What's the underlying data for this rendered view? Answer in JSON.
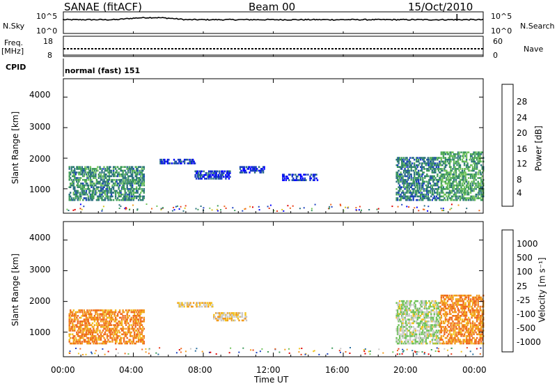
{
  "header": {
    "title": "SANAE (fitACF)",
    "beam": "Beam 00",
    "date": "15/Oct/2010"
  },
  "top_panels": {
    "nsky_label": "N.Sky",
    "nsky_ticks": [
      "10^5",
      "10^0"
    ],
    "nsearch_label": "N.Search",
    "nsearch_ticks": [
      "10^5",
      "10^0"
    ],
    "freq_label_1": "Freq.",
    "freq_label_2": "[MHz]",
    "freq_ticks": [
      "18",
      "8"
    ],
    "nave_label": "Nave",
    "nave_ticks": [
      "60",
      "0"
    ],
    "cpid_label": "CPID",
    "cpid_text": "normal (fast) 151"
  },
  "colors": {
    "power_scale": [
      "#0000ff",
      "#1a3fbf",
      "#2a6f7f",
      "#3c9a5a",
      "#6fc25a",
      "#d9c21a",
      "#f29b1c",
      "#ef6a1e",
      "#e83a1a",
      "#e00000"
    ],
    "velocity_scale": [
      "#1a3fbf",
      "#2a6f9f",
      "#3c9a5a",
      "#6fc25a",
      "#c8c8c8",
      "#f2c21c",
      "#f29b1c",
      "#ef6a1e",
      "#e83a1a",
      "#e00000"
    ]
  },
  "chart_data": [
    {
      "type": "heatmap",
      "panel": "power",
      "ylabel": "Slant Range [km]",
      "ylim": [
        200,
        4600
      ],
      "yticks": [
        "1000",
        "2000",
        "3000",
        "4000"
      ],
      "xlim": [
        0,
        24
      ],
      "colorbar_label": "Power [dB]",
      "colorbar_ticks": [
        "4",
        "8",
        "12",
        "16",
        "20",
        "24",
        "28"
      ],
      "colorbar_range": [
        0,
        32
      ],
      "regions": [
        {
          "t0": 0.3,
          "t1": 4.6,
          "r0": 600,
          "r1": 1700,
          "value": 10
        },
        {
          "t0": 5.5,
          "t1": 7.5,
          "r0": 1800,
          "r1": 1950,
          "value": 4
        },
        {
          "t0": 7.5,
          "t1": 9.5,
          "r0": 1300,
          "r1": 1550,
          "value": 5
        },
        {
          "t0": 10.0,
          "t1": 11.5,
          "r0": 1500,
          "r1": 1700,
          "value": 4
        },
        {
          "t0": 12.5,
          "t1": 14.5,
          "r0": 1250,
          "r1": 1450,
          "value": 4
        },
        {
          "t0": 19.0,
          "t1": 21.5,
          "r0": 600,
          "r1": 2000,
          "value": 9
        },
        {
          "t0": 21.5,
          "t1": 24.0,
          "r0": 600,
          "r1": 2200,
          "value": 12
        }
      ]
    },
    {
      "type": "heatmap",
      "panel": "velocity",
      "ylabel": "Slant Range [km]",
      "ylim": [
        200,
        4600
      ],
      "yticks": [
        "1000",
        "2000",
        "3000",
        "4000"
      ],
      "xlim": [
        0,
        24
      ],
      "xlabel": "Time UT",
      "xticks": [
        "00:00",
        "04:00",
        "08:00",
        "12:00",
        "16:00",
        "20:00",
        "00:00"
      ],
      "colorbar_label": "Velocity [m s⁻¹]",
      "colorbar_ticks": [
        "1000",
        "500",
        "100",
        "25",
        "-25",
        "-100",
        "-500",
        "-1000"
      ],
      "regions": [
        {
          "t0": 0.3,
          "t1": 4.6,
          "r0": 600,
          "r1": 1700,
          "value": -100
        },
        {
          "t0": 6.5,
          "t1": 8.5,
          "r0": 1800,
          "r1": 1950,
          "value": 0
        },
        {
          "t0": 8.5,
          "t1": 10.5,
          "r0": 1350,
          "r1": 1600,
          "value": 0
        },
        {
          "t0": 19.0,
          "t1": 21.5,
          "r0": 600,
          "r1": 2000,
          "value": 100
        },
        {
          "t0": 21.5,
          "t1": 24.0,
          "r0": 600,
          "r1": 2200,
          "value": -100
        }
      ]
    }
  ]
}
